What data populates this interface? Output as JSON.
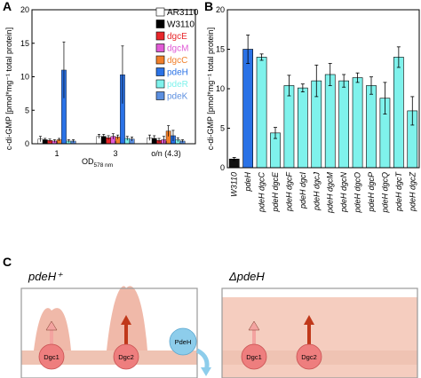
{
  "colors": {
    "AR3110": "#ffffff",
    "W3110": "#000000",
    "dgcE": "#e8262a",
    "dgcM": "#e05bd6",
    "dgcC": "#f07f2a",
    "pdeH": "#2a72e6",
    "pdeR": "#7ff2ec",
    "pdeK": "#5b8fe0",
    "panelB_first": "#111111",
    "panelB_second": "#2a72e6",
    "panelB_rest": "#7ff2ec",
    "cell_bg": "#f5cdbf",
    "membrane": "#efc3b3",
    "dgc_fill": "#ee7e7e",
    "dgc_arrow_light": "#f3a3a0",
    "dgc_arrow_dark": "#c0381a",
    "pdeh_fill": "#8dcdeb"
  },
  "chart_data": [
    {
      "panel": "A",
      "type": "bar",
      "ylabel": "c-di-GMP [pmol*mg⁻¹ total protein]",
      "xlabel_main": "OD",
      "xlabel_sub": "578 nm",
      "ylim": [
        0,
        20
      ],
      "yticks": [
        "0",
        "5",
        "10",
        "15",
        "20"
      ],
      "categories": [
        "1",
        "3",
        "o/n (4.3)"
      ],
      "series": [
        {
          "name": "AR3110",
          "values": [
            0.7,
            1.1,
            0.9
          ],
          "errors": [
            0.4,
            0.3,
            0.4
          ]
        },
        {
          "name": "W3110",
          "values": [
            0.6,
            1.1,
            0.8
          ],
          "errors": [
            0.2,
            0.3,
            0.4
          ]
        },
        {
          "name": "dgcE",
          "values": [
            0.5,
            0.9,
            0.5
          ],
          "errors": [
            0.2,
            0.3,
            0.3
          ]
        },
        {
          "name": "dgcM",
          "values": [
            0.4,
            1.1,
            0.6
          ],
          "errors": [
            0.2,
            0.4,
            0.5
          ]
        },
        {
          "name": "dgcC",
          "values": [
            0.6,
            1.0,
            1.9
          ],
          "errors": [
            0.2,
            0.3,
            0.8
          ]
        },
        {
          "name": "pdeH",
          "values": [
            11.0,
            10.3,
            1.2
          ],
          "errors": [
            4.2,
            4.3,
            0.8
          ]
        },
        {
          "name": "pdeR",
          "values": [
            0.4,
            0.8,
            0.6
          ],
          "errors": [
            0.2,
            0.3,
            0.3
          ]
        },
        {
          "name": "pdeK",
          "values": [
            0.4,
            0.7,
            0.4
          ],
          "errors": [
            0.2,
            0.3,
            0.2
          ]
        }
      ]
    },
    {
      "panel": "B",
      "type": "bar",
      "ylabel": "c-di-GMP [pmol*mg⁻¹ total protein]",
      "ylim": [
        0,
        20
      ],
      "yticks": [
        "0",
        "5",
        "10",
        "15",
        "20"
      ],
      "categories": [
        "W3110",
        "pdeH",
        "pdeH dgcC",
        "pdeH dgcE",
        "pdeH dgcF",
        "pdeH dgcI",
        "pdeH dgcJ",
        "pdeH dgcM",
        "pdeH dgcN",
        "pdeH dgcO",
        "pdeH dgcP",
        "pdeH dgcQ",
        "pdeH dgcT",
        "pdeH dgcZ"
      ],
      "values": [
        1.1,
        15.0,
        14.0,
        4.4,
        10.4,
        10.1,
        11.0,
        11.8,
        11.0,
        11.4,
        10.4,
        8.8,
        14.0,
        7.2
      ],
      "errors": [
        0.2,
        1.8,
        0.4,
        0.7,
        1.3,
        0.5,
        2.0,
        1.4,
        0.8,
        0.6,
        1.1,
        2.0,
        1.3,
        1.8
      ]
    }
  ],
  "panels": {
    "a_letter": "A",
    "b_letter": "B",
    "c_letter": "C",
    "c_left_title": "pdeH⁺",
    "c_right_title": "ΔpdeH",
    "labels": {
      "dgc1": "Dgc1",
      "dgc2": "Dgc2",
      "pdeh": "PdeH"
    }
  }
}
